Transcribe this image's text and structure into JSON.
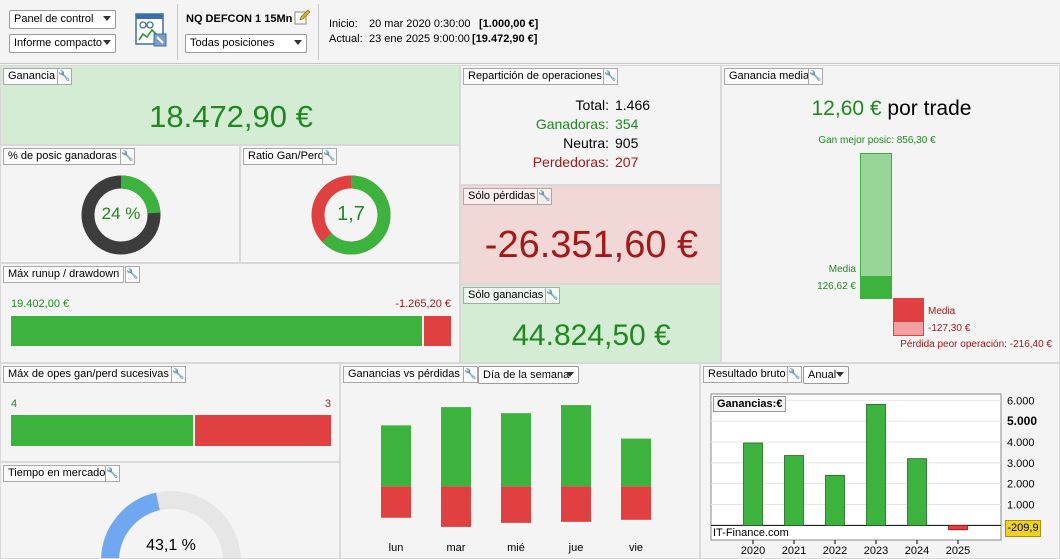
{
  "toolbar": {
    "view_select": "Panel de control",
    "report_select": "Informe compacto",
    "strategy_name": "NQ DEFCON 1 15Mn",
    "positions_select": "Todas posiciones",
    "start_label": "Inicio:",
    "start_date": "20 mar 2020 0:30:00",
    "start_value": "[1.000,00 €]",
    "current_label": "Actual:",
    "current_date": "23 ene 2025 9:00:00",
    "current_value": "[19.472,90 €]"
  },
  "ganancia": {
    "title": "Ganancia",
    "value": "18.472,90 €"
  },
  "pct_ganadoras": {
    "title": "% de posic ganadoras",
    "value": "24 %",
    "fraction": 0.24
  },
  "ratio": {
    "title": "Ratio Gan/Perd",
    "value": "1,7",
    "fraction": 0.63
  },
  "runup": {
    "title": "Máx runup / drawdown",
    "runup_value": "19.402,00 €",
    "drawdown_value": "-1.265,20 €",
    "runup_fraction": 0.938
  },
  "reparticion": {
    "title": "Repartición de operaciones",
    "total_label": "Total:",
    "total_value": "1.466",
    "ganadoras_label": "Ganadoras:",
    "ganadoras_value": "354",
    "neutra_label": "Neutra:",
    "neutra_value": "905",
    "perdedoras_label": "Perdedoras:",
    "perdedoras_value": "207"
  },
  "solo_perdidas": {
    "title": "Sólo pérdidas",
    "value": "-26.351,60 €"
  },
  "solo_ganancias": {
    "title": "Sólo ganancias",
    "value": "44.824,50 €"
  },
  "ganancia_media": {
    "title": "Ganancia media",
    "value": "12,60 €",
    "suffix": "por trade",
    "best_label": "Gan mejor posic: 856,30 €",
    "media_gain_label": "Media",
    "media_gain_value": "126,62 €",
    "media_loss_label": "Media",
    "media_loss_value": "-127,30 €",
    "worst_label": "Pérdida peor operación: -216,40 €"
  },
  "sucesivas": {
    "title": "Máx de opes gan/perd sucesivas",
    "wins": "4",
    "losses": "3",
    "win_fraction": 0.571
  },
  "tiempo": {
    "title": "Tiempo en mercado",
    "value": "43,1 %",
    "fraction": 0.431
  },
  "gan_vs_perd": {
    "title": "Ganancias vs pérdidas",
    "period_select": "Día de la semana"
  },
  "resultado": {
    "title": "Resultado bruto",
    "period_select": "Anual",
    "legend": "Ganancias:",
    "legend_unit": "€",
    "watermark": "IT-Finance.com",
    "last_value": "-209,9"
  },
  "chart_data": [
    {
      "type": "bar",
      "categories": [
        "lun",
        "mar",
        "mié",
        "jue",
        "vie"
      ],
      "series": [
        {
          "name": "",
          "values": [
            60,
            78,
            72,
            80,
            47
          ]
        },
        {
          "name": "",
          "values": [
            -31,
            -40,
            -36,
            -35,
            -33
          ]
        }
      ],
      "ylim": [
        -45,
        85
      ]
    },
    {
      "type": "bar",
      "categories": [
        "2020",
        "2021",
        "2022",
        "2023",
        "2024",
        "2025"
      ],
      "values": [
        3950,
        3350,
        2400,
        5800,
        3200,
        -209.9
      ],
      "ylim": [
        -700,
        6300
      ],
      "yticks": [
        "1.000",
        "2.000",
        "3.000",
        "4.000",
        "5.000",
        "6.000"
      ],
      "ylabel_unit": "€"
    }
  ]
}
